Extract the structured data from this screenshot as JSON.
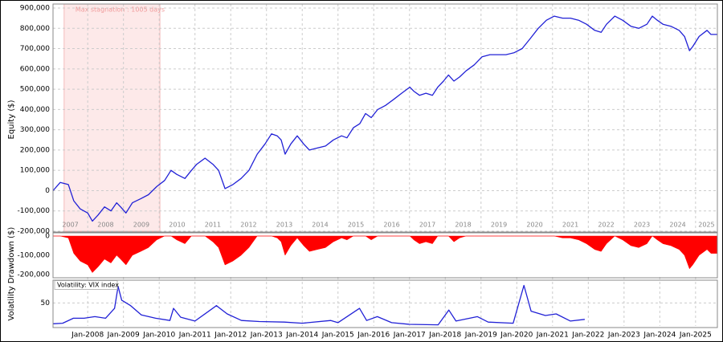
{
  "chart_data": [
    {
      "type": "line",
      "ylabel": "Equity ($)",
      "annotation": "Max stagnation : 1005 days",
      "shade": [
        2007.34,
        2010.02
      ],
      "xlim": [
        2007.03,
        2025.61
      ],
      "ylim": [
        -200000,
        900000
      ],
      "grid": true,
      "xticks": [
        2007,
        2008,
        2009,
        2010,
        2011,
        2012,
        2013,
        2014,
        2015,
        2016,
        2017,
        2018,
        2019,
        2020,
        2021,
        2022,
        2023,
        2024,
        2025
      ],
      "yticks": [
        {
          "value": -200000,
          "label": "-200,000"
        },
        {
          "value": -100000,
          "label": "-100,000"
        },
        0,
        {
          "value": 100000,
          "label": "100,000"
        },
        {
          "value": 200000,
          "label": "200,000"
        },
        {
          "value": 300000,
          "label": "300,000"
        },
        {
          "value": 400000,
          "label": "400,000"
        },
        {
          "value": 500000,
          "label": "500,000"
        },
        {
          "value": 600000,
          "label": "600,000"
        },
        {
          "value": 700000,
          "label": "700,000"
        },
        {
          "value": 800000,
          "label": "800,000"
        },
        {
          "value": 900000,
          "label": "900,000"
        }
      ],
      "x": [
        2007.03,
        2007.23,
        2007.46,
        2007.61,
        2007.79,
        2008.0,
        2008.13,
        2008.29,
        2008.47,
        2008.65,
        2008.81,
        2008.92,
        2009.07,
        2009.25,
        2009.48,
        2009.7,
        2009.93,
        2010.15,
        2010.33,
        2010.49,
        2010.72,
        2010.9,
        2011.05,
        2011.28,
        2011.5,
        2011.66,
        2011.84,
        2012.06,
        2012.29,
        2012.51,
        2012.74,
        2012.96,
        2013.14,
        2013.3,
        2013.41,
        2013.52,
        2013.68,
        2013.86,
        2014.04,
        2014.2,
        2014.42,
        2014.65,
        2014.87,
        2015.1,
        2015.25,
        2015.43,
        2015.61,
        2015.77,
        2015.93,
        2016.11,
        2016.33,
        2016.56,
        2016.78,
        2017.01,
        2017.12,
        2017.28,
        2017.46,
        2017.64,
        2017.79,
        2017.95,
        2018.09,
        2018.24,
        2018.4,
        2018.58,
        2018.81,
        2019.03,
        2019.25,
        2019.48,
        2019.7,
        2019.93,
        2020.15,
        2020.38,
        2020.6,
        2020.83,
        2021.05,
        2021.28,
        2021.5,
        2021.73,
        2021.95,
        2022.18,
        2022.36,
        2022.51,
        2022.74,
        2022.96,
        2023.19,
        2023.41,
        2023.64,
        2023.79,
        2023.93,
        2024.09,
        2024.31,
        2024.54,
        2024.69,
        2024.83,
        2024.92,
        2025.1,
        2025.32,
        2025.43,
        2025.61
      ],
      "series": [
        {
          "color": "#2121d6",
          "values": [
            0,
            40000,
            30000,
            -50000,
            -90000,
            -110000,
            -150000,
            -120000,
            -80000,
            -100000,
            -60000,
            -80000,
            -110000,
            -60000,
            -40000,
            -20000,
            20000,
            50000,
            100000,
            80000,
            60000,
            100000,
            130000,
            160000,
            130000,
            100000,
            10000,
            30000,
            60000,
            100000,
            180000,
            230000,
            280000,
            270000,
            250000,
            180000,
            230000,
            270000,
            230000,
            200000,
            210000,
            220000,
            250000,
            270000,
            260000,
            310000,
            330000,
            380000,
            360000,
            400000,
            420000,
            450000,
            480000,
            510000,
            490000,
            470000,
            480000,
            470000,
            510000,
            540000,
            570000,
            540000,
            560000,
            590000,
            620000,
            660000,
            670000,
            670000,
            670000,
            680000,
            700000,
            750000,
            800000,
            840000,
            860000,
            850000,
            850000,
            840000,
            820000,
            790000,
            780000,
            820000,
            860000,
            840000,
            810000,
            800000,
            820000,
            860000,
            840000,
            820000,
            810000,
            790000,
            760000,
            690000,
            710000,
            760000,
            790000,
            770000,
            770000
          ]
        }
      ]
    },
    {
      "type": "area",
      "ylabel": "Drawdown ($)",
      "xlim": [
        2007.03,
        2025.61
      ],
      "ylim": [
        -200000,
        0
      ],
      "yticks": [
        0,
        {
          "value": -100000,
          "label": "-100,000"
        },
        {
          "value": -200000,
          "label": "-200,000"
        }
      ],
      "x": [
        2007.03,
        2007.23,
        2007.46,
        2007.61,
        2007.79,
        2008.0,
        2008.13,
        2008.29,
        2008.47,
        2008.65,
        2008.81,
        2008.92,
        2009.07,
        2009.25,
        2009.48,
        2009.7,
        2009.93,
        2010.15,
        2010.33,
        2010.49,
        2010.72,
        2010.9,
        2011.05,
        2011.28,
        2011.5,
        2011.66,
        2011.84,
        2012.06,
        2012.29,
        2012.51,
        2012.74,
        2012.96,
        2013.14,
        2013.3,
        2013.41,
        2013.52,
        2013.68,
        2013.86,
        2014.04,
        2014.2,
        2014.42,
        2014.65,
        2014.87,
        2015.1,
        2015.25,
        2015.43,
        2015.61,
        2015.77,
        2015.93,
        2016.11,
        2016.33,
        2016.56,
        2016.78,
        2017.01,
        2017.12,
        2017.28,
        2017.46,
        2017.64,
        2017.79,
        2017.95,
        2018.09,
        2018.24,
        2018.4,
        2018.58,
        2018.81,
        2019.03,
        2019.25,
        2019.48,
        2019.7,
        2019.93,
        2020.15,
        2020.38,
        2020.6,
        2020.83,
        2021.05,
        2021.28,
        2021.5,
        2021.73,
        2021.95,
        2022.18,
        2022.36,
        2022.51,
        2022.74,
        2022.96,
        2023.19,
        2023.41,
        2023.64,
        2023.79,
        2023.93,
        2024.09,
        2024.31,
        2024.54,
        2024.69,
        2024.83,
        2024.92,
        2025.1,
        2025.32,
        2025.43,
        2025.61
      ],
      "series": [
        {
          "color": "#ff0000",
          "values": [
            0,
            0,
            -10000,
            -90000,
            -130000,
            -150000,
            -190000,
            -160000,
            -120000,
            -140000,
            -100000,
            -120000,
            -150000,
            -100000,
            -80000,
            -60000,
            -20000,
            0,
            0,
            -20000,
            -40000,
            0,
            0,
            0,
            -30000,
            -60000,
            -150000,
            -130000,
            -100000,
            -60000,
            0,
            0,
            0,
            -10000,
            -30000,
            -100000,
            -50000,
            -10000,
            -50000,
            -80000,
            -70000,
            -60000,
            -30000,
            -10000,
            -20000,
            0,
            0,
            0,
            -20000,
            0,
            0,
            0,
            0,
            0,
            -20000,
            -40000,
            -30000,
            -40000,
            0,
            0,
            0,
            -30000,
            -10000,
            0,
            0,
            0,
            0,
            0,
            0,
            0,
            0,
            0,
            0,
            0,
            0,
            -10000,
            -10000,
            -20000,
            -40000,
            -70000,
            -80000,
            -40000,
            0,
            -20000,
            -50000,
            -60000,
            -40000,
            0,
            -20000,
            -40000,
            -50000,
            -70000,
            -100000,
            -170000,
            -150000,
            -100000,
            -70000,
            -90000,
            -90000
          ]
        }
      ]
    },
    {
      "type": "line",
      "title": "Volatility: VIX index",
      "ylabel": "Volatility",
      "xlim": [
        2007.03,
        2025.61
      ],
      "ylim": [
        8,
        90
      ],
      "grid": true,
      "xticks": [
        {
          "value": 2008,
          "label": "Jan-2008"
        },
        {
          "value": 2009,
          "label": "Jan-2009"
        },
        {
          "value": 2010,
          "label": "Jan-2010"
        },
        {
          "value": 2011,
          "label": "Jan-2011"
        },
        {
          "value": 2012,
          "label": "Jan-2012"
        },
        {
          "value": 2013,
          "label": "Jan-2013"
        },
        {
          "value": 2014,
          "label": "Jan-2014"
        },
        {
          "value": 2015,
          "label": "Jan-2015"
        },
        {
          "value": 2016,
          "label": "Jan-2016"
        },
        {
          "value": 2017,
          "label": "Jan-2017"
        },
        {
          "value": 2018,
          "label": "Jan-2018"
        },
        {
          "value": 2019,
          "label": "Jan-2019"
        },
        {
          "value": 2020,
          "label": "Jan-2020"
        },
        {
          "value": 2021,
          "label": "Jan-2021"
        },
        {
          "value": 2022,
          "label": "Jan-2022"
        },
        {
          "value": 2023,
          "label": "Jan-2023"
        },
        {
          "value": 2024,
          "label": "Jan-2024"
        },
        {
          "value": 2025,
          "label": "Jan-2025"
        }
      ],
      "yticks": [
        50
      ],
      "x": [
        2007.03,
        2007.3,
        2007.6,
        2007.9,
        2008.2,
        2008.5,
        2008.75,
        2008.85,
        2008.95,
        2009.2,
        2009.5,
        2009.9,
        2010.3,
        2010.4,
        2010.6,
        2011.0,
        2011.6,
        2011.9,
        2012.3,
        2012.8,
        2013.5,
        2014.0,
        2014.8,
        2015.0,
        2015.6,
        2015.8,
        2016.1,
        2016.5,
        2017.0,
        2017.8,
        2018.1,
        2018.3,
        2018.9,
        2019.2,
        2019.9,
        2020.2,
        2020.4,
        2020.8,
        2021.1,
        2021.5,
        2021.9
      ],
      "series": [
        {
          "color": "#2121d6",
          "values": [
            12,
            13,
            22,
            22,
            25,
            22,
            40,
            80,
            55,
            45,
            28,
            22,
            18,
            40,
            24,
            17,
            45,
            30,
            18,
            16,
            15,
            13,
            18,
            14,
            40,
            18,
            25,
            14,
            11,
            10,
            37,
            17,
            25,
            15,
            13,
            82,
            35,
            27,
            30,
            17,
            20
          ]
        }
      ]
    }
  ]
}
